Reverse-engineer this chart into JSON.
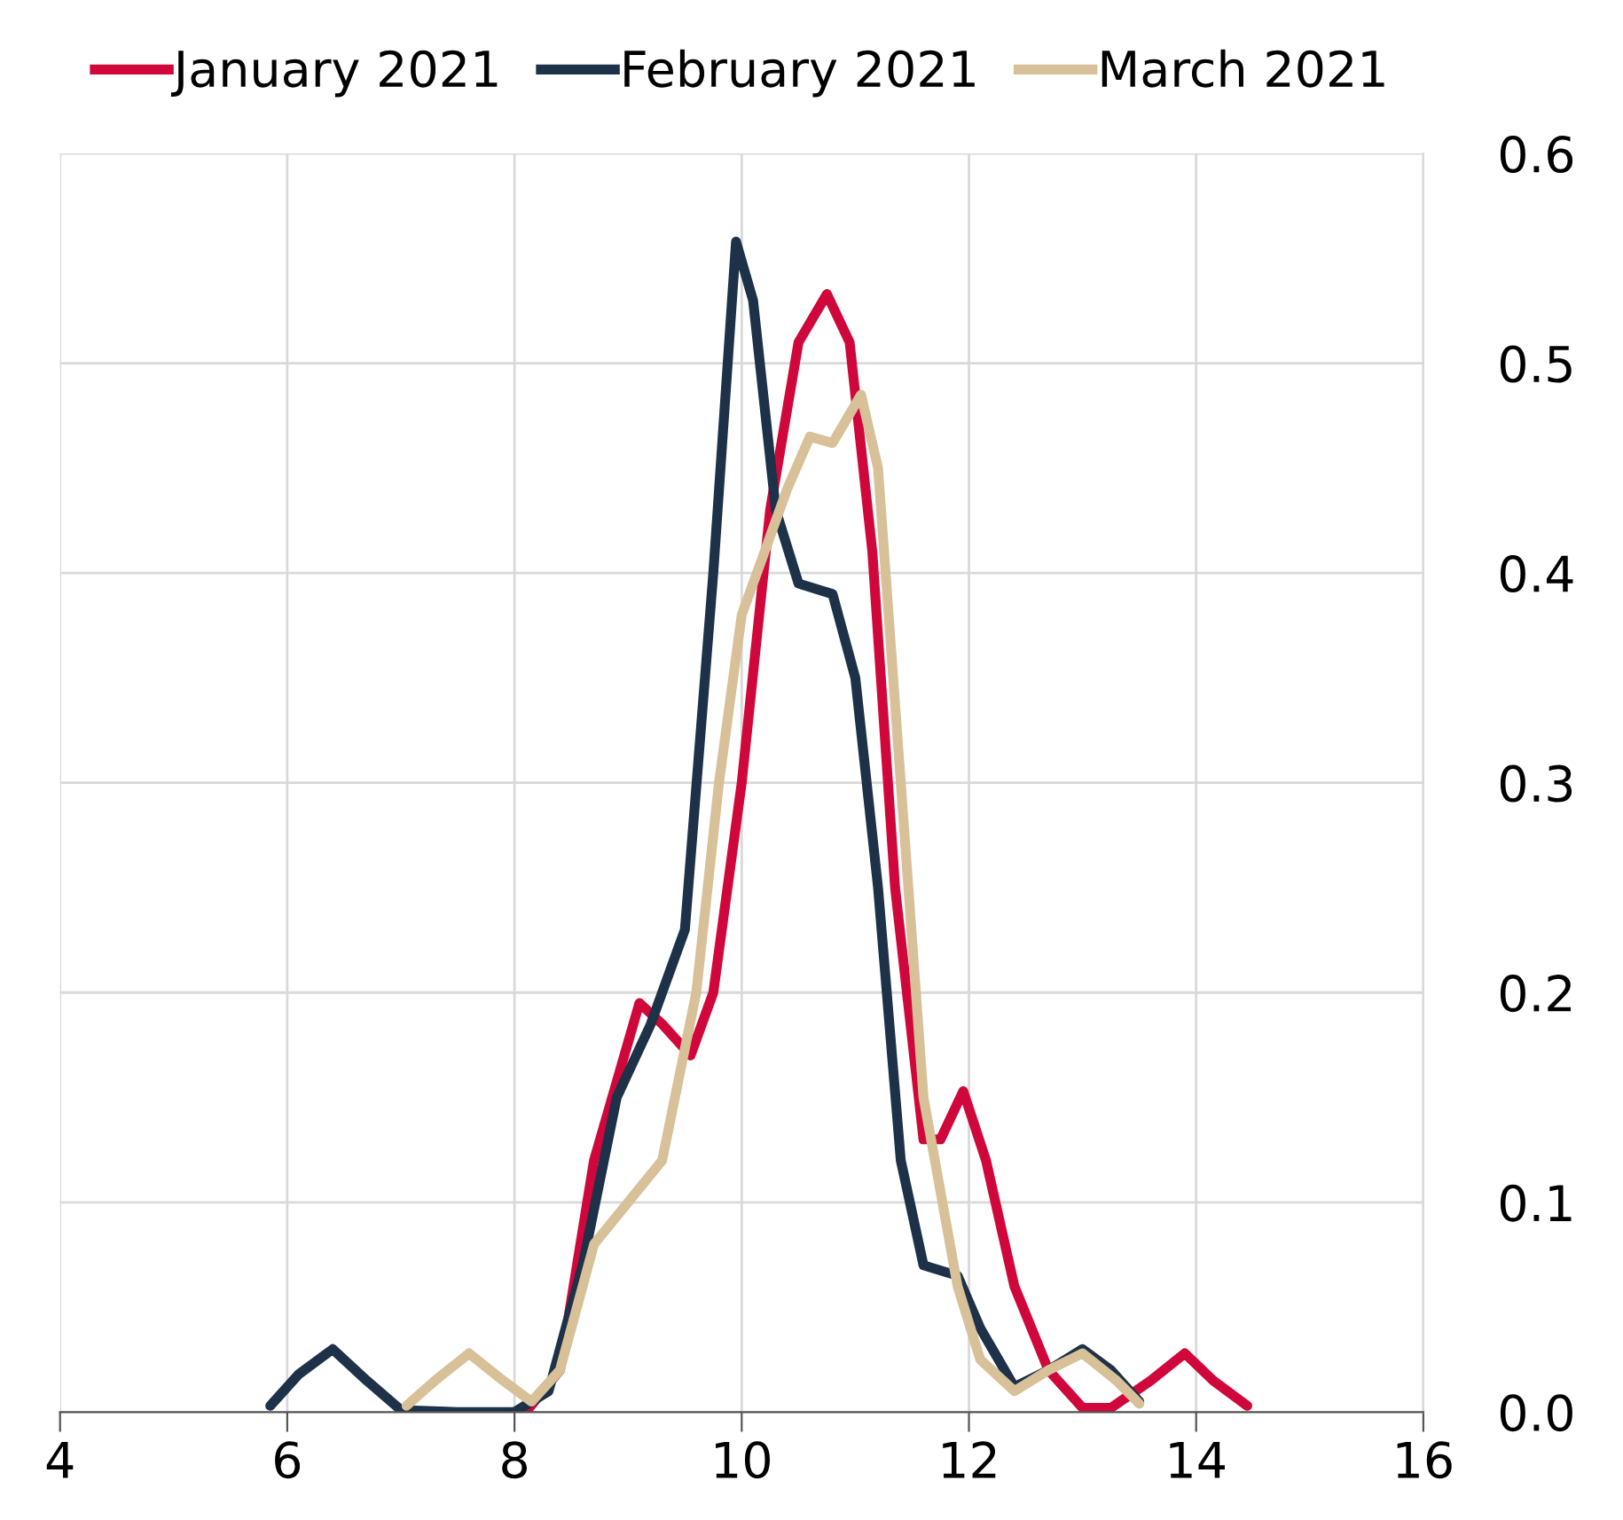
{
  "chart_data": {
    "type": "line",
    "xlim": [
      4,
      16
    ],
    "xticks": [
      4,
      6,
      8,
      10,
      12,
      14,
      16
    ],
    "ylim": [
      0,
      0.6
    ],
    "yticks": [
      {
        "value": 0,
        "label": "0.0"
      },
      0.1,
      0.2,
      0.3,
      0.4,
      0.5,
      0.6
    ],
    "grid": true,
    "legend": "top",
    "line_style": "solid",
    "marker": "none",
    "series": [
      {
        "name": "January 2021",
        "color": "#d0073a",
        "x": [
          8.1,
          8.4,
          8.7,
          9.1,
          9.3,
          9.55,
          9.75,
          10.0,
          10.25,
          10.5,
          10.75,
          10.95,
          11.15,
          11.35,
          11.6,
          11.75,
          11.95,
          12.15,
          12.4,
          12.7,
          13.0,
          13.25,
          13.6,
          13.9,
          14.15,
          14.45
        ],
        "values": [
          0.0,
          0.02,
          0.12,
          0.195,
          0.185,
          0.17,
          0.2,
          0.3,
          0.43,
          0.51,
          0.533,
          0.51,
          0.41,
          0.25,
          0.13,
          0.13,
          0.153,
          0.12,
          0.06,
          0.02,
          0.002,
          0.002,
          0.015,
          0.028,
          0.015,
          0.003
        ]
      },
      {
        "name": "February 2021",
        "color": "#1d3148",
        "x": [
          5.85,
          6.1,
          6.4,
          6.7,
          7.0,
          7.5,
          8.0,
          8.3,
          8.6,
          8.9,
          9.2,
          9.5,
          9.75,
          9.95,
          10.1,
          10.3,
          10.5,
          10.8,
          11.0,
          11.2,
          11.4,
          11.6,
          11.9,
          12.1,
          12.4,
          12.7,
          13.0,
          13.25,
          13.5
        ],
        "values": [
          0.003,
          0.018,
          0.03,
          0.015,
          0.001,
          0.0,
          0.0,
          0.01,
          0.07,
          0.15,
          0.185,
          0.23,
          0.4,
          0.558,
          0.53,
          0.43,
          0.395,
          0.39,
          0.35,
          0.25,
          0.12,
          0.07,
          0.065,
          0.04,
          0.012,
          0.02,
          0.03,
          0.02,
          0.005
        ]
      },
      {
        "name": "March 2021",
        "color": "#d8c098",
        "x": [
          7.05,
          7.3,
          7.6,
          7.9,
          8.15,
          8.4,
          8.7,
          9.0,
          9.3,
          9.6,
          9.8,
          10.0,
          10.2,
          10.4,
          10.6,
          10.8,
          11.05,
          11.2,
          11.4,
          11.6,
          11.9,
          12.1,
          12.4,
          12.7,
          13.0,
          13.3,
          13.5
        ],
        "values": [
          0.003,
          0.015,
          0.028,
          0.015,
          0.005,
          0.02,
          0.08,
          0.1,
          0.12,
          0.2,
          0.3,
          0.38,
          0.41,
          0.44,
          0.465,
          0.462,
          0.485,
          0.45,
          0.3,
          0.15,
          0.06,
          0.025,
          0.01,
          0.02,
          0.028,
          0.015,
          0.004
        ]
      }
    ]
  }
}
